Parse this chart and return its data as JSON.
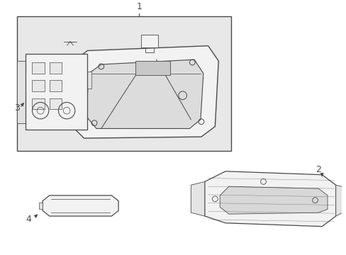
{
  "background_color": "#ffffff",
  "line_color": "#4a4a4a",
  "label_color": "#111111",
  "box_bg": "#e8e8e8",
  "part_bg": "#f2f2f2",
  "fig_w": 4.89,
  "fig_h": 3.6,
  "dpi": 100
}
